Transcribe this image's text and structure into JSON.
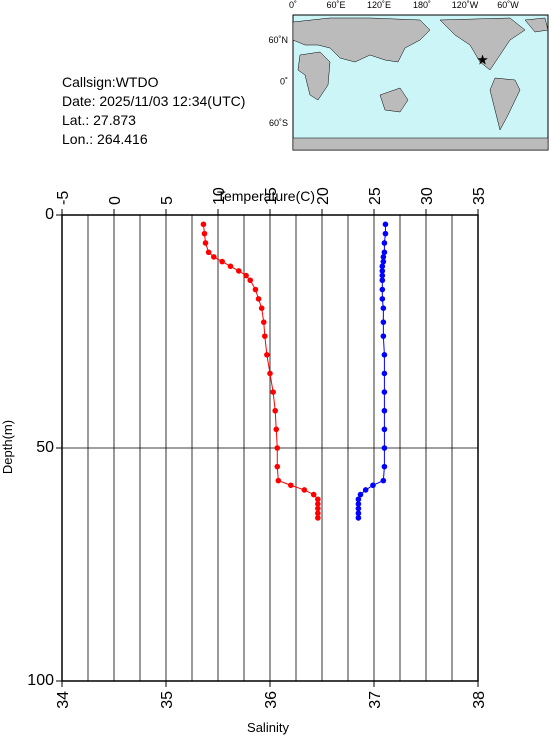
{
  "info": [
    "Callsign:WTDO",
    "Date:  2025/11/03 12:34(UTC)",
    "Lat.:  27.873",
    "Lon.:  264.416"
  ],
  "map": {
    "top_labels": [
      "0˚",
      "60˚E",
      "120˚E",
      "180˚",
      "120˚W",
      "60˚W"
    ],
    "left_labels": [
      "60˚N",
      "0˚",
      "60˚S"
    ],
    "lon": 264.416,
    "lat": 27.873
  },
  "chart_data": {
    "type": "profile",
    "ylabel": "Depth(m)",
    "ylim": [
      0,
      100
    ],
    "yticks": [
      0,
      50,
      100
    ],
    "y_inverted": true,
    "x2label": "Temperature(C)",
    "x2lim": [
      -5,
      35
    ],
    "x2ticks": [
      -5,
      0,
      5,
      10,
      15,
      20,
      25,
      30,
      35
    ],
    "x2_minor": [
      -2.5,
      2.5,
      7.5,
      12.5,
      17.5,
      22.5,
      27.5,
      32.5
    ],
    "xlabel": "Salinity",
    "xlim": [
      34,
      38
    ],
    "xticks": [
      34,
      35,
      36,
      37,
      38
    ],
    "grid": true,
    "depth": [
      2,
      4,
      6,
      8,
      9,
      10,
      11,
      12,
      13,
      14,
      16,
      18,
      20,
      23,
      26,
      30,
      34,
      38,
      42,
      46,
      50,
      54,
      57,
      58,
      59,
      60,
      61,
      62,
      63,
      64,
      65
    ],
    "series": [
      {
        "color": "#ff0000",
        "axis": "x2",
        "values": [
          8.6,
          8.7,
          8.8,
          9.1,
          9.6,
          10.4,
          11.2,
          12.0,
          12.7,
          13.1,
          13.6,
          13.9,
          14.2,
          14.4,
          14.5,
          14.7,
          15.0,
          15.3,
          15.5,
          15.6,
          15.7,
          15.7,
          15.8,
          17.0,
          18.3,
          19.2,
          19.6,
          19.6,
          19.6,
          19.6,
          19.6
        ]
      },
      {
        "color": "#0000ff",
        "axis": "x",
        "values": [
          37.11,
          37.11,
          37.1,
          37.1,
          37.09,
          37.09,
          37.08,
          37.08,
          37.08,
          37.08,
          37.08,
          37.08,
          37.09,
          37.09,
          37.09,
          37.1,
          37.1,
          37.1,
          37.1,
          37.1,
          37.1,
          37.1,
          37.09,
          36.99,
          36.92,
          36.87,
          36.85,
          36.85,
          36.85,
          36.85,
          36.85
        ]
      }
    ]
  }
}
